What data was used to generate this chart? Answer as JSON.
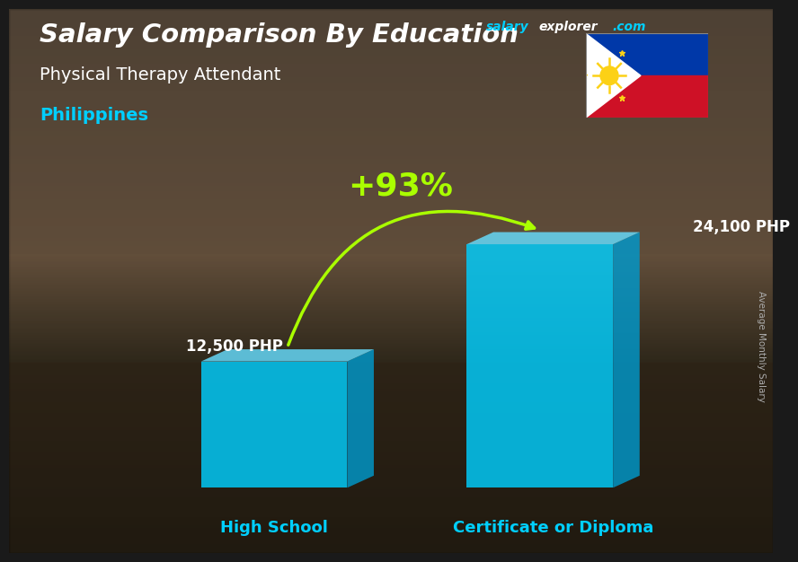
{
  "title": "Salary Comparison By Education",
  "site_salary": "salary",
  "site_explorer": "explorer",
  "site_com": ".com",
  "subtitle1": "Physical Therapy Attendant",
  "subtitle2": "Philippines",
  "categories": [
    "High School",
    "Certificate or Diploma"
  ],
  "values": [
    12500,
    24100
  ],
  "labels": [
    "12,500 PHP",
    "24,100 PHP"
  ],
  "bar_face_color": "#00cfff",
  "bar_side_color": "#0099cc",
  "bar_top_color": "#66ddff",
  "bar_alpha": 0.82,
  "pct_label": "+93%",
  "pct_color": "#aaff00",
  "arrow_color": "#aaff00",
  "value_color": "#ffffff",
  "cat_color": "#00cfff",
  "title_color": "#ffffff",
  "sub1_color": "#ffffff",
  "sub2_color": "#00cfff",
  "site_salary_color": "#00cfff",
  "site_explorer_color": "#ffffff",
  "site_com_color": "#00cfff",
  "ylabel": "Average Monthly Salary",
  "ylabel_color": "#aaaaaa",
  "ylim_max": 28000,
  "bg_top": "#4a3520",
  "bg_mid": "#2a2a2a",
  "bg_bottom": "#8a6040"
}
